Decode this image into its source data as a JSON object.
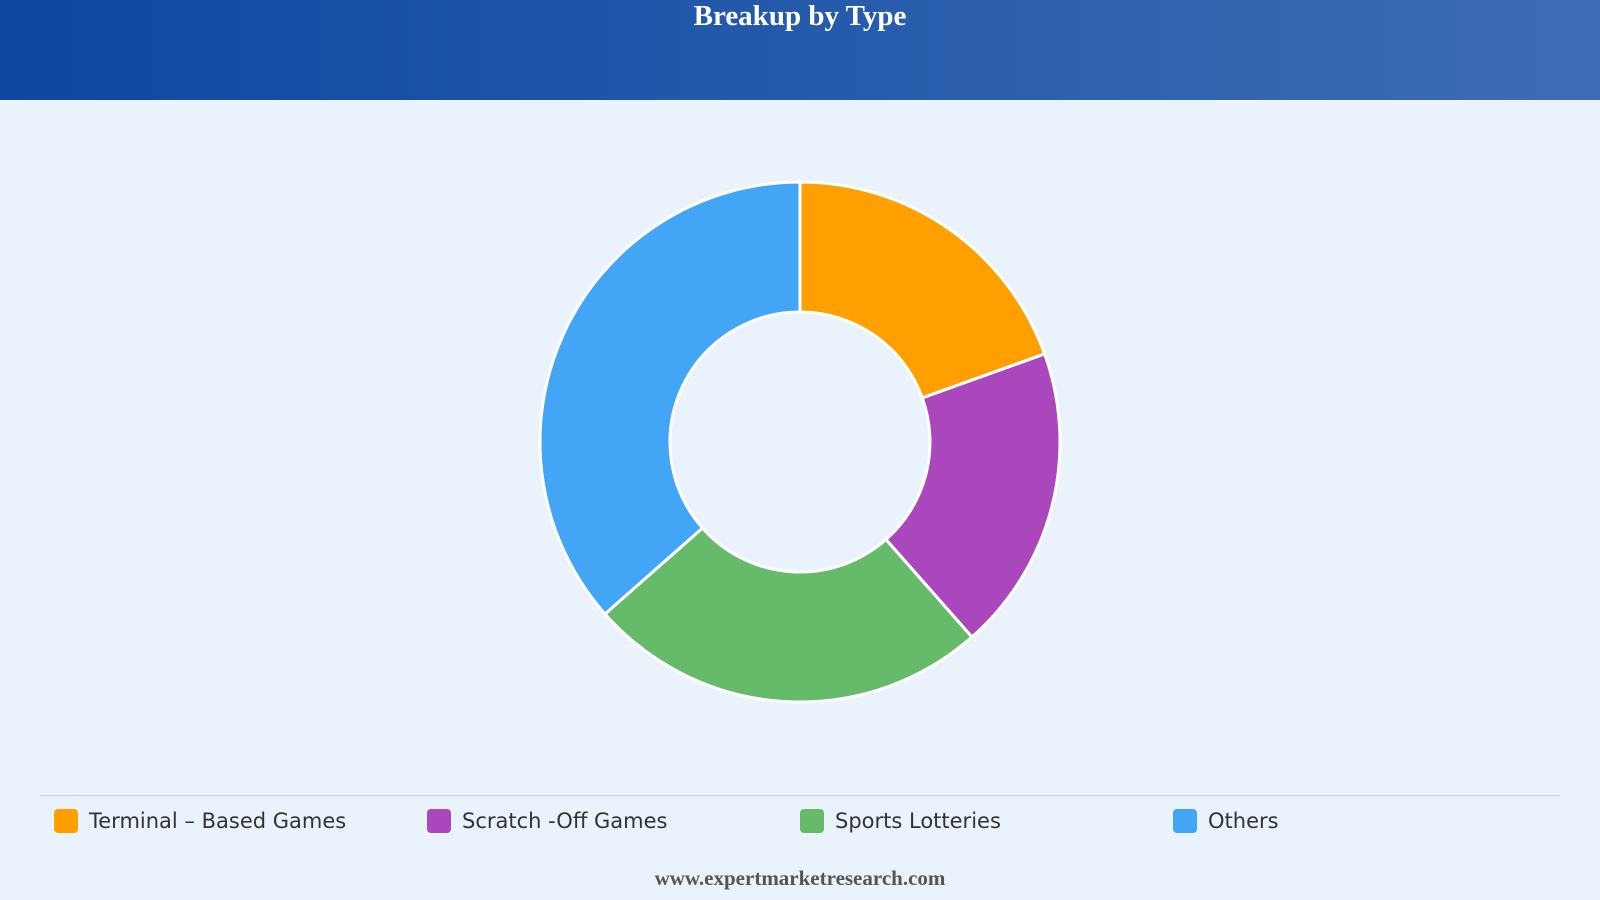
{
  "chart_data": {
    "type": "donut",
    "title": "Breakup by Type",
    "categories": [
      "Terminal – Based Games",
      "Scratch -Off Games",
      "Sports Lotteries",
      "Others"
    ],
    "values": [
      19.5,
      19,
      25,
      36.5
    ],
    "colors": [
      "#ffa000",
      "#ab47bc",
      "#66bb6a",
      "#42a5f5"
    ],
    "source": "www.expertmarketresearch.com"
  }
}
